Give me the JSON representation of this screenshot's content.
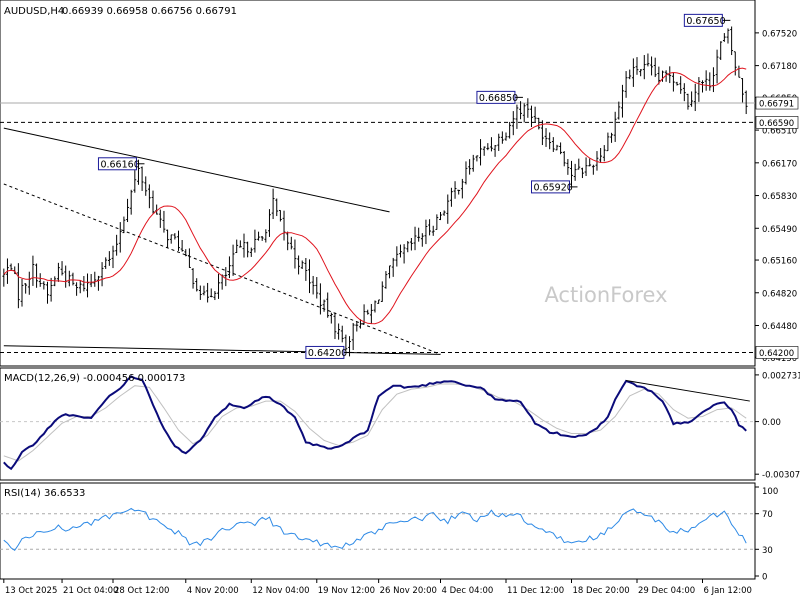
{
  "chart_data": [
    {
      "type": "bar",
      "title": "AUDUSD,H4",
      "ohlc_label": "0.66939 0.66958 0.66756 0.66791",
      "watermark": "ActionForex",
      "ylim": [
        0.6408,
        0.6782
      ],
      "price_ticks": [
        "0.67520",
        "0.67180",
        "0.66850",
        "0.66510",
        "0.66170",
        "0.65830",
        "0.65490",
        "0.65160",
        "0.64820",
        "0.64480",
        "0.64150"
      ],
      "current_price": "0.66791",
      "level_line": {
        "label": "0.66590",
        "value": 0.6659
      },
      "bottom_line": {
        "label": "0.64200",
        "value": 0.642
      },
      "annotations": [
        {
          "label": "0.67650",
          "bar": 198,
          "value": 0.6765
        },
        {
          "label": "0.66850",
          "bar": 141,
          "value": 0.6685
        },
        {
          "label": "0.66160",
          "bar": 37,
          "value": 0.6616
        },
        {
          "label": "0.65920",
          "bar": 156,
          "value": 0.6592
        },
        {
          "label": "0.64200",
          "bar": 94,
          "value": 0.642
        }
      ],
      "trendlines": [
        {
          "from": [
            0,
            0.6653
          ],
          "to": [
            106,
            0.6566
          ]
        },
        {
          "from": [
            0,
            0.6427
          ],
          "to": [
            120,
            0.6418
          ]
        },
        {
          "from": [
            0,
            0.6595
          ],
          "to": [
            120,
            0.6418
          ]
        }
      ],
      "bar_count": 205,
      "anchors": [
        [
          0,
          0.65
        ],
        [
          2,
          0.6512
        ],
        [
          4,
          0.648
        ],
        [
          8,
          0.6507
        ],
        [
          12,
          0.6479
        ],
        [
          15,
          0.6507
        ],
        [
          20,
          0.6486
        ],
        [
          24,
          0.6493
        ],
        [
          27,
          0.651
        ],
        [
          30,
          0.652
        ],
        [
          34,
          0.6575
        ],
        [
          37,
          0.6609
        ],
        [
          40,
          0.658
        ],
        [
          44,
          0.6545
        ],
        [
          48,
          0.6533
        ],
        [
          52,
          0.6497
        ],
        [
          55,
          0.6477
        ],
        [
          58,
          0.6486
        ],
        [
          61,
          0.65
        ],
        [
          64,
          0.6526
        ],
        [
          67,
          0.653
        ],
        [
          71,
          0.6538
        ],
        [
          74,
          0.6575
        ],
        [
          77,
          0.6542
        ],
        [
          80,
          0.652
        ],
        [
          83,
          0.6503
        ],
        [
          86,
          0.648
        ],
        [
          89,
          0.6461
        ],
        [
          92,
          0.644
        ],
        [
          94,
          0.6428
        ],
        [
          97,
          0.6452
        ],
        [
          101,
          0.6462
        ],
        [
          104,
          0.6488
        ],
        [
          107,
          0.6512
        ],
        [
          110,
          0.6525
        ],
        [
          114,
          0.654
        ],
        [
          118,
          0.6552
        ],
        [
          122,
          0.6576
        ],
        [
          126,
          0.66
        ],
        [
          130,
          0.6626
        ],
        [
          134,
          0.6635
        ],
        [
          138,
          0.665
        ],
        [
          141,
          0.6672
        ],
        [
          144,
          0.6675
        ],
        [
          147,
          0.6652
        ],
        [
          150,
          0.6641
        ],
        [
          153,
          0.663
        ],
        [
          156,
          0.6605
        ],
        [
          159,
          0.661
        ],
        [
          162,
          0.6617
        ],
        [
          165,
          0.6632
        ],
        [
          168,
          0.6662
        ],
        [
          171,
          0.6705
        ],
        [
          174,
          0.6715
        ],
        [
          177,
          0.6715
        ],
        [
          180,
          0.6704
        ],
        [
          183,
          0.671
        ],
        [
          186,
          0.6697
        ],
        [
          188,
          0.668
        ],
        [
          191,
          0.67
        ],
        [
          194,
          0.67
        ],
        [
          197,
          0.674
        ],
        [
          199,
          0.675
        ],
        [
          201,
          0.6717
        ],
        [
          203,
          0.669
        ],
        [
          204,
          0.6679
        ]
      ],
      "x_tick_labels": [
        {
          "label": "13 Oct 2025",
          "bar": 0
        },
        {
          "label": "21 Oct 04:00",
          "bar": 16
        },
        {
          "label": "28 Oct 12:00",
          "bar": 30
        },
        {
          "label": "4 Nov 20:00",
          "bar": 50
        },
        {
          "label": "12 Nov 04:00",
          "bar": 68
        },
        {
          "label": "19 Nov 12:00",
          "bar": 86
        },
        {
          "label": "26 Nov 20:00",
          "bar": 103
        },
        {
          "label": "4 Dec 04:00",
          "bar": 120
        },
        {
          "label": "11 Dec 12:00",
          "bar": 138
        },
        {
          "label": "18 Dec 20:00",
          "bar": 156
        },
        {
          "label": "29 Dec 04:00",
          "bar": 174
        },
        {
          "label": "6 Jan 12:00",
          "bar": 192
        }
      ],
      "colors": {
        "price": "#000000",
        "ma": "#e0141e",
        "grid": "#c8c8c8",
        "annotation_border": "#1c1c9a"
      }
    },
    {
      "type": "line",
      "title": "MACD(12,26,9) -0.000456 0.000173",
      "ylim": [
        -0.0033,
        0.0029
      ],
      "ticks": [
        "0.002731",
        "0.00",
        "-0.003077"
      ],
      "anchors": [
        [
          0,
          -0.0024
        ],
        [
          2,
          -0.0028
        ],
        [
          5,
          -0.0018
        ],
        [
          9,
          -0.0012
        ],
        [
          13,
          -0.0002
        ],
        [
          16,
          0.0004
        ],
        [
          20,
          0.0003
        ],
        [
          24,
          0.0002
        ],
        [
          28,
          0.0013
        ],
        [
          32,
          0.002
        ],
        [
          35,
          0.0026
        ],
        [
          38,
          0.0025
        ],
        [
          41,
          0.001
        ],
        [
          44,
          -0.0004
        ],
        [
          47,
          -0.0014
        ],
        [
          50,
          -0.0019
        ],
        [
          54,
          -0.0011
        ],
        [
          58,
          0.0003
        ],
        [
          62,
          0.001
        ],
        [
          66,
          0.0008
        ],
        [
          69,
          0.0012
        ],
        [
          72,
          0.0015
        ],
        [
          76,
          0.001
        ],
        [
          80,
          0.0002
        ],
        [
          83,
          -0.0012
        ],
        [
          86,
          -0.0014
        ],
        [
          90,
          -0.0016
        ],
        [
          93,
          -0.0014
        ],
        [
          96,
          -0.001
        ],
        [
          100,
          -0.0005
        ],
        [
          103,
          0.0015
        ],
        [
          107,
          0.0021
        ],
        [
          111,
          0.002
        ],
        [
          115,
          0.0021
        ],
        [
          119,
          0.0023
        ],
        [
          123,
          0.0024
        ],
        [
          127,
          0.0021
        ],
        [
          131,
          0.002
        ],
        [
          135,
          0.0013
        ],
        [
          139,
          0.0012
        ],
        [
          142,
          0.0012
        ],
        [
          146,
          -0.0001
        ],
        [
          150,
          -0.0006
        ],
        [
          154,
          -0.0008
        ],
        [
          157,
          -0.0009
        ],
        [
          160,
          -0.0008
        ],
        [
          163,
          -0.0004
        ],
        [
          166,
          0.0003
        ],
        [
          168,
          0.0013
        ],
        [
          171,
          0.0024
        ],
        [
          174,
          0.0021
        ],
        [
          178,
          0.0018
        ],
        [
          181,
          0.0012
        ],
        [
          184,
          -0.0001
        ],
        [
          188,
          -0.0001
        ],
        [
          192,
          0.0005
        ],
        [
          195,
          0.001
        ],
        [
          198,
          0.0011
        ],
        [
          200,
          0.0007
        ],
        [
          202,
          -0.0002
        ],
        [
          204,
          -0.0005
        ]
      ],
      "signal_anchors": [
        [
          0,
          -0.002
        ],
        [
          4,
          -0.0023
        ],
        [
          8,
          -0.0017
        ],
        [
          12,
          -0.0009
        ],
        [
          16,
          -0.0001
        ],
        [
          20,
          0.0003
        ],
        [
          24,
          0.0003
        ],
        [
          28,
          0.0008
        ],
        [
          32,
          0.0015
        ],
        [
          36,
          0.0021
        ],
        [
          40,
          0.002
        ],
        [
          44,
          0.0008
        ],
        [
          48,
          -0.0005
        ],
        [
          52,
          -0.0013
        ],
        [
          56,
          -0.0008
        ],
        [
          60,
          0.0003
        ],
        [
          64,
          0.0008
        ],
        [
          68,
          0.0009
        ],
        [
          72,
          0.0012
        ],
        [
          76,
          0.0012
        ],
        [
          80,
          0.0006
        ],
        [
          84,
          -0.0004
        ],
        [
          88,
          -0.0011
        ],
        [
          92,
          -0.0014
        ],
        [
          96,
          -0.0012
        ],
        [
          100,
          -0.0008
        ],
        [
          104,
          0.0007
        ],
        [
          108,
          0.0016
        ],
        [
          112,
          0.0019
        ],
        [
          116,
          0.002
        ],
        [
          120,
          0.0022
        ],
        [
          124,
          0.0022
        ],
        [
          128,
          0.0021
        ],
        [
          132,
          0.0018
        ],
        [
          136,
          0.0014
        ],
        [
          140,
          0.0012
        ],
        [
          144,
          0.0007
        ],
        [
          148,
          0.0001
        ],
        [
          152,
          -0.0004
        ],
        [
          156,
          -0.0007
        ],
        [
          160,
          -0.0007
        ],
        [
          164,
          -0.0005
        ],
        [
          168,
          0.0003
        ],
        [
          172,
          0.0015
        ],
        [
          176,
          0.0019
        ],
        [
          180,
          0.0016
        ],
        [
          184,
          0.0007
        ],
        [
          188,
          0.0002
        ],
        [
          192,
          0.0003
        ],
        [
          196,
          0.0007
        ],
        [
          200,
          0.0008
        ],
        [
          204,
          0.0002
        ]
      ],
      "trendline": {
        "from": [
          171,
          0.0024
        ],
        "to": [
          205,
          0.0012
        ]
      },
      "colors": {
        "macd": "#0b0b7a",
        "signal": "#c0c0c0"
      }
    },
    {
      "type": "line",
      "title": "RSI(14) 36.6533",
      "ylim": [
        0,
        100
      ],
      "ticks": [
        100,
        70,
        30,
        0
      ],
      "anchors": [
        [
          0,
          38
        ],
        [
          3,
          32
        ],
        [
          6,
          42
        ],
        [
          10,
          50
        ],
        [
          14,
          55
        ],
        [
          18,
          52
        ],
        [
          22,
          58
        ],
        [
          26,
          62
        ],
        [
          30,
          68
        ],
        [
          34,
          72
        ],
        [
          37,
          75
        ],
        [
          40,
          66
        ],
        [
          44,
          54
        ],
        [
          48,
          48
        ],
        [
          51,
          38
        ],
        [
          54,
          36
        ],
        [
          58,
          46
        ],
        [
          62,
          55
        ],
        [
          65,
          60
        ],
        [
          68,
          58
        ],
        [
          72,
          67
        ],
        [
          76,
          52
        ],
        [
          80,
          45
        ],
        [
          84,
          40
        ],
        [
          88,
          36
        ],
        [
          91,
          32
        ],
        [
          94,
          34
        ],
        [
          98,
          42
        ],
        [
          102,
          48
        ],
        [
          106,
          60
        ],
        [
          110,
          62
        ],
        [
          114,
          64
        ],
        [
          118,
          68
        ],
        [
          122,
          62
        ],
        [
          126,
          70
        ],
        [
          130,
          64
        ],
        [
          134,
          72
        ],
        [
          138,
          68
        ],
        [
          141,
          70
        ],
        [
          144,
          58
        ],
        [
          148,
          52
        ],
        [
          152,
          45
        ],
        [
          155,
          36
        ],
        [
          158,
          40
        ],
        [
          162,
          42
        ],
        [
          166,
          52
        ],
        [
          169,
          62
        ],
        [
          172,
          74
        ],
        [
          176,
          70
        ],
        [
          180,
          60
        ],
        [
          183,
          52
        ],
        [
          187,
          50
        ],
        [
          191,
          58
        ],
        [
          195,
          68
        ],
        [
          198,
          72
        ],
        [
          201,
          55
        ],
        [
          204,
          37
        ]
      ],
      "colors": {
        "rsi": "#2e8ae6",
        "level": "#aaaaaa"
      }
    }
  ]
}
